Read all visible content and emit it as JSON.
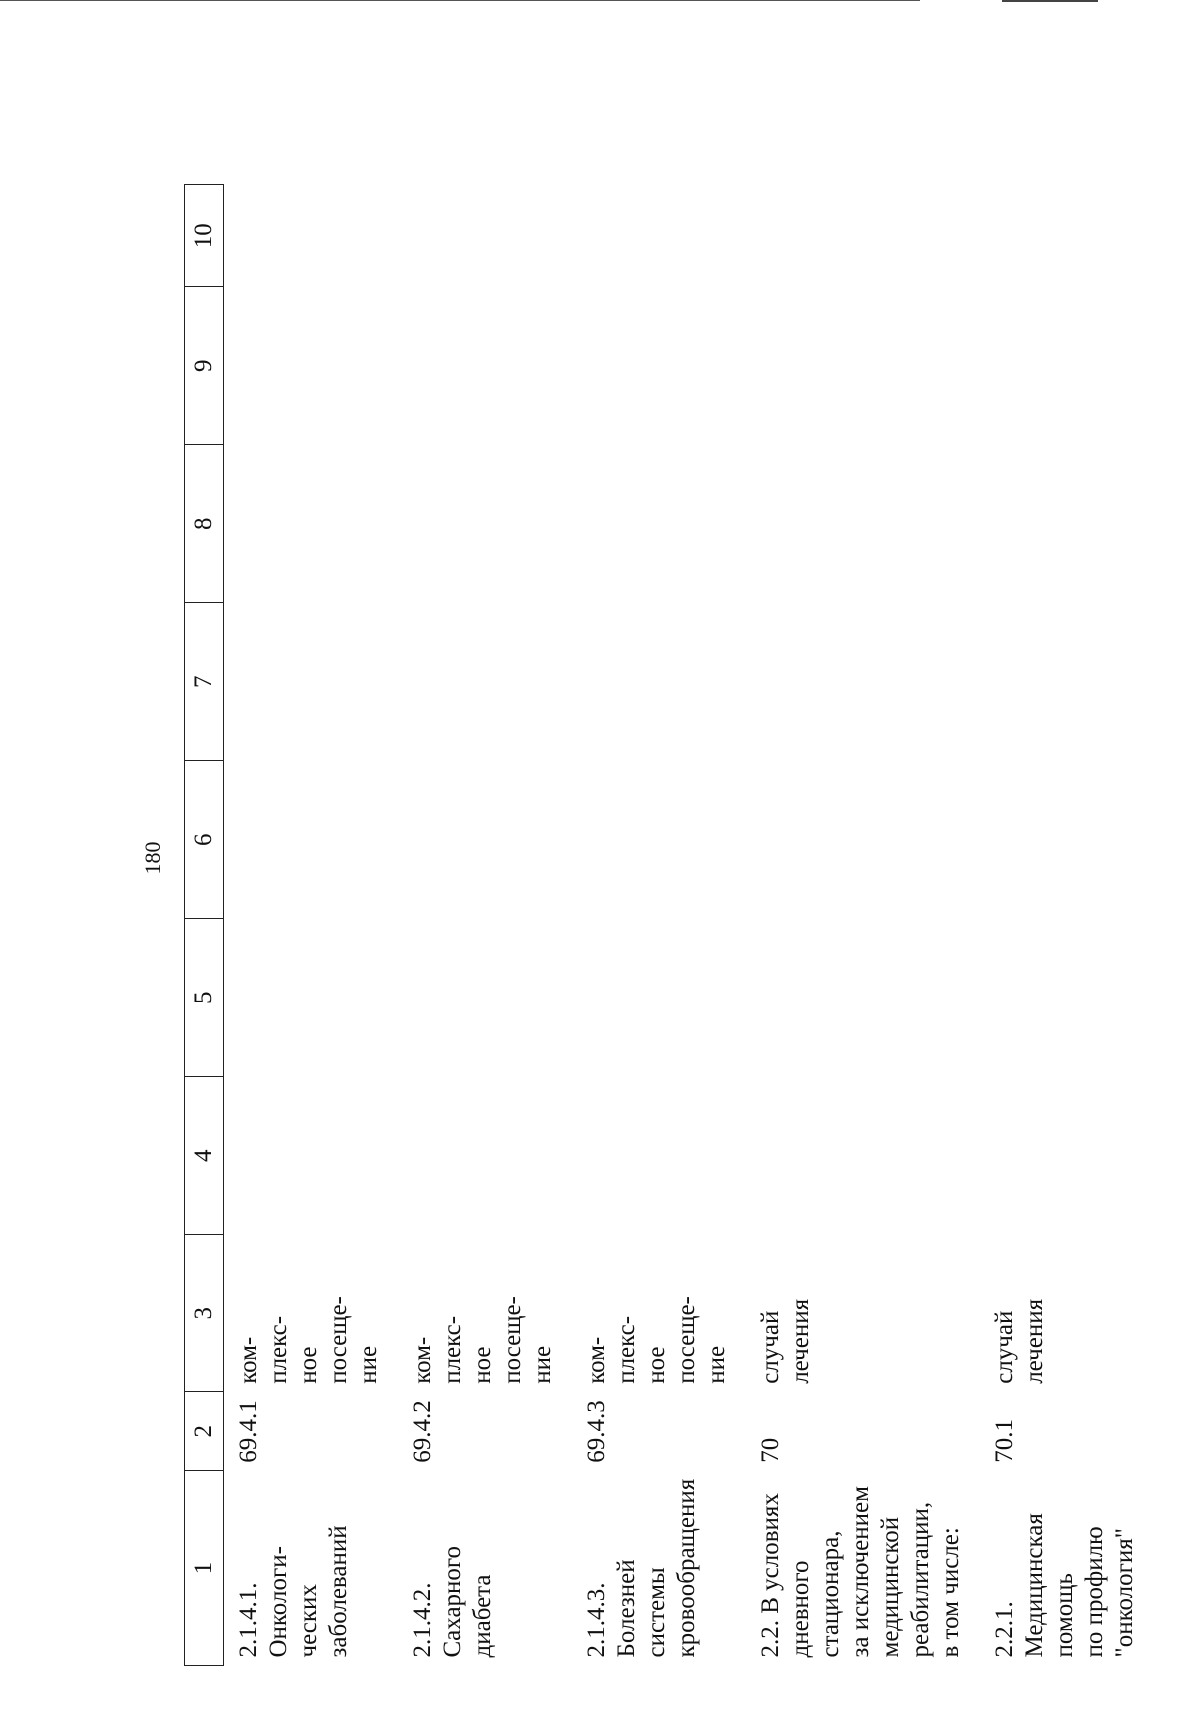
{
  "page": {
    "number": "180"
  },
  "table": {
    "columns": [
      "1",
      "2",
      "3",
      "4",
      "5",
      "6",
      "7",
      "8",
      "9",
      "10"
    ],
    "rows": [
      {
        "name": "2.1.4.1. Онкологи-\nческих заболеваний",
        "code": "69.4.1",
        "unit": "ком-\nплекс-\nное\nпосеще-\nние"
      },
      {
        "name": "2.1.4.2. Сахарного\nдиабета",
        "code": "69.4.2",
        "unit": "ком-\nплекс-\nное\nпосеще-\nние"
      },
      {
        "name": "2.1.4.3. Болезней\nсистемы\nкровообращения",
        "code": "69.4.3",
        "unit": "ком-\nплекс-\nное\nпосеще-\nние"
      },
      {
        "name": "2.2. В условиях\nдневного\nстационара,\nза исключением\nмедицинской\nреабилитации,\nв том числе:",
        "code": "70",
        "unit": "случай\nлечения"
      },
      {
        "name": "2.2.1. Медицинская\nпомощь\nпо профилю\n\"онкология\"",
        "code": "70.1",
        "unit": "случай\nлечения"
      }
    ]
  }
}
